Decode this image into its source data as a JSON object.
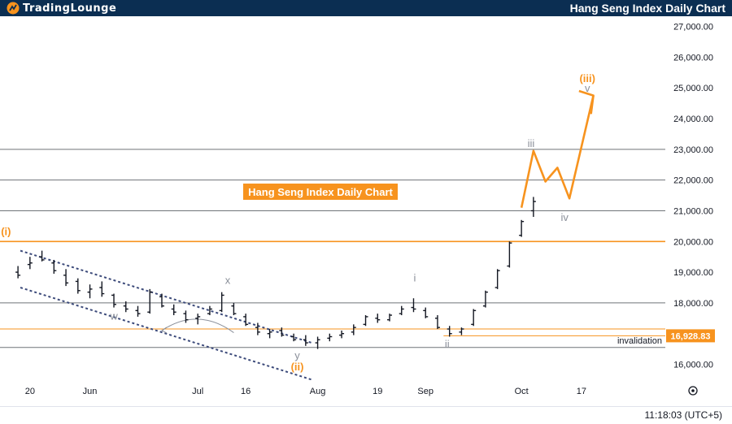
{
  "header": {
    "logo_text": "TradingLounge",
    "title": "Hang Seng Index Daily Chart"
  },
  "footer": {
    "time": "11:18:03 (UTC+5)"
  },
  "colors": {
    "orange": "#f7931e",
    "navy": "#0b2e52",
    "grey_label": "#8a8f99",
    "channel": "#3c4a7a",
    "grid_line": "#6f7378",
    "candle": "#131722"
  },
  "icons": [
    "logo-icon",
    "settings-icon"
  ],
  "chart_data": {
    "type": "candlestick",
    "title": "Hang Seng Index Daily Chart",
    "y_axis": {
      "ticks": [
        "16,000.00",
        "17,000.00",
        "18,000.00",
        "19,000.00",
        "20,000.00",
        "21,000.00",
        "22,000.00",
        "23,000.00",
        "24,000.00",
        "25,000.00",
        "26,000.00",
        "27,000.00"
      ],
      "tick_values": [
        16000,
        17000,
        18000,
        19000,
        20000,
        21000,
        22000,
        23000,
        24000,
        25000,
        26000,
        27000
      ],
      "range": [
        15300,
        27200
      ]
    },
    "x_axis": {
      "ticks": [
        "20",
        "Jun",
        "Jul",
        "16",
        "Aug",
        "19",
        "Sep",
        "Oct",
        "17"
      ],
      "tick_bars": [
        1,
        6,
        15,
        19,
        25,
        30,
        34,
        42,
        47
      ],
      "bar_range": [
        -1.5,
        54
      ]
    },
    "candles": [
      [
        19000,
        19200,
        18800,
        18900
      ],
      [
        19250,
        19500,
        19100,
        19300
      ],
      [
        19500,
        19700,
        19350,
        19400
      ],
      [
        19300,
        19400,
        18950,
        19050
      ],
      [
        18900,
        19100,
        18550,
        18650
      ],
      [
        18700,
        18800,
        18300,
        18400
      ],
      [
        18350,
        18600,
        18150,
        18450
      ],
      [
        18500,
        18700,
        18200,
        18300
      ],
      [
        18250,
        18300,
        17850,
        17950
      ],
      [
        17900,
        18050,
        17700,
        17800
      ],
      [
        17750,
        17900,
        17550,
        17650
      ],
      [
        17700,
        18450,
        17650,
        18350
      ],
      [
        18200,
        18300,
        17850,
        17900
      ],
      [
        17800,
        17950,
        17600,
        17700
      ],
      [
        17650,
        17750,
        17350,
        17450
      ],
      [
        17500,
        17650,
        17300,
        17550
      ],
      [
        17650,
        17900,
        17600,
        17800
      ],
      [
        17750,
        18350,
        17700,
        18250
      ],
      [
        17900,
        18000,
        17600,
        17650
      ],
      [
        17550,
        17650,
        17250,
        17300
      ],
      [
        17200,
        17350,
        16950,
        17050
      ],
      [
        17000,
        17150,
        16850,
        17050
      ],
      [
        17100,
        17200,
        16900,
        16950
      ],
      [
        16900,
        17000,
        16750,
        16800
      ],
      [
        16800,
        16950,
        16600,
        16700
      ],
      [
        16700,
        16900,
        16500,
        16800
      ],
      [
        16850,
        17000,
        16750,
        16900
      ],
      [
        16950,
        17100,
        16850,
        17000
      ],
      [
        17050,
        17300,
        16950,
        17200
      ],
      [
        17300,
        17600,
        17250,
        17550
      ],
      [
        17500,
        17650,
        17350,
        17450
      ],
      [
        17450,
        17650,
        17400,
        17600
      ],
      [
        17650,
        17900,
        17600,
        17800
      ],
      [
        17850,
        18150,
        17700,
        17800
      ],
      [
        17750,
        17850,
        17500,
        17550
      ],
      [
        17500,
        17600,
        17150,
        17200
      ],
      [
        17150,
        17250,
        16900,
        17000
      ],
      [
        17050,
        17200,
        16950,
        17150
      ],
      [
        17300,
        17800,
        17250,
        17750
      ],
      [
        17900,
        18400,
        17850,
        18350
      ],
      [
        18500,
        19100,
        18450,
        19050
      ],
      [
        19200,
        20000,
        19150,
        19950
      ],
      [
        20200,
        20700,
        20150,
        20650
      ],
      [
        21000,
        21450,
        20800,
        21300
      ]
    ],
    "wave_labels": [
      {
        "text": "(i)",
        "bar": -1,
        "price": 20200,
        "color": "orange"
      },
      {
        "text": "w",
        "bar": 8,
        "price": 17450,
        "color": "grey"
      },
      {
        "text": "x",
        "bar": 17.5,
        "price": 18620,
        "color": "grey"
      },
      {
        "text": "y",
        "bar": 23.3,
        "price": 16170,
        "color": "grey"
      },
      {
        "text": "(ii)",
        "bar": 23.3,
        "price": 15800,
        "color": "orange"
      },
      {
        "text": "i",
        "bar": 33.1,
        "price": 18700,
        "color": "grey"
      },
      {
        "text": "ii",
        "bar": 35.8,
        "price": 16540,
        "color": "grey"
      },
      {
        "text": "iii",
        "bar": 42.8,
        "price": 23080,
        "color": "grey"
      },
      {
        "text": "iv",
        "bar": 45.6,
        "price": 20670,
        "color": "grey"
      },
      {
        "text": "v",
        "bar": 47.5,
        "price": 24870,
        "color": "grey"
      },
      {
        "text": "(iii)",
        "bar": 47.5,
        "price": 25190,
        "color": "orange"
      }
    ],
    "projection": {
      "points": [
        [
          42,
          21100
        ],
        [
          43,
          22950
        ],
        [
          44,
          21950
        ],
        [
          45,
          22400
        ],
        [
          46,
          21400
        ],
        [
          48,
          24750
        ]
      ],
      "arrow_head": [
        [
          46.8,
          24900
        ],
        [
          48,
          24750
        ],
        [
          47.8,
          24150
        ]
      ]
    },
    "channel": [
      {
        "from": [
          0.2,
          19700
        ],
        "to": [
          24.5,
          16700
        ]
      },
      {
        "from": [
          0.2,
          18500
        ],
        "to": [
          24.5,
          15500
        ]
      }
    ],
    "channel_arrow": {
      "from": [
        18,
        17030
      ],
      "to": [
        12,
        17100
      ],
      "mid": [
        15,
        17400
      ]
    },
    "horizontal_lines": [
      {
        "price": 23000,
        "color": "grey"
      },
      {
        "price": 22000,
        "color": "grey"
      },
      {
        "price": 21000,
        "color": "grey"
      },
      {
        "price": 20000,
        "color": "orange"
      },
      {
        "price": 18000,
        "color": "grey"
      },
      {
        "price": 17150,
        "color": "orange"
      },
      {
        "price": 16928.83,
        "color": "orange",
        "x_start_bar": 35.5
      },
      {
        "price": 16550,
        "color": "grey"
      }
    ],
    "invalidation": {
      "label": "invalidation",
      "price_label": "16,928.83",
      "price": 16928.83
    },
    "annotation_box": {
      "text": "Hang Seng Index Daily Chart"
    }
  }
}
